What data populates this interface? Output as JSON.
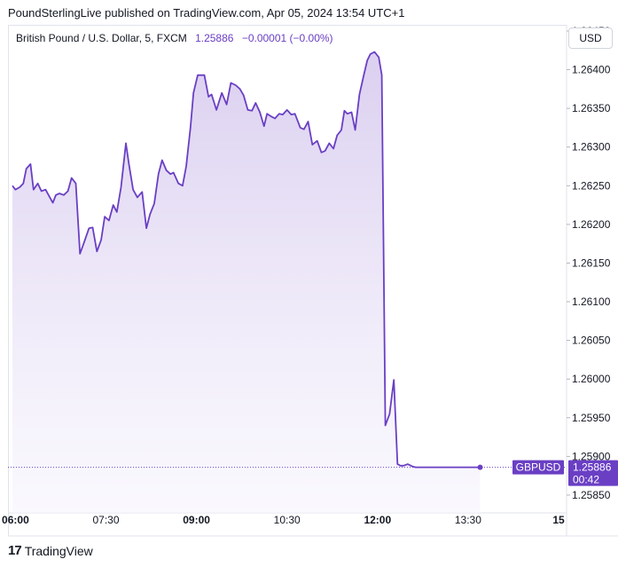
{
  "header": {
    "published_text": "PoundSterlingLive published on TradingView.com, Apr 05, 2024 13:54 UTC+1"
  },
  "legend": {
    "symbol_text": "British Pound / U.S. Dollar, 5, FXCM",
    "price": "1.25886",
    "change": "−0.00001 (−0.00%)"
  },
  "currency_button": "USD",
  "price_label": {
    "ticker": "GBPUSD",
    "price": "1.25886",
    "countdown": "00:42"
  },
  "footer": {
    "logo_glyph": "17",
    "brand": "TradingView"
  },
  "colors": {
    "line": "#6a3fc4",
    "fill_top": "#d9cdef",
    "fill_bottom": "#f7f5fd",
    "price_tag_bg": "#6a3fc4"
  },
  "chart_data": {
    "type": "area",
    "yaxis_side": "right",
    "ylim": [
      1.25827,
      1.26458
    ],
    "yticks": [
      "1.26450",
      "1.26400",
      "1.26350",
      "1.26300",
      "1.26250",
      "1.26200",
      "1.26150",
      "1.26100",
      "1.26050",
      "1.26000",
      "1.25950",
      "1.25900",
      "1.25850"
    ],
    "xlim": [
      5.95,
      15.0
    ],
    "xticks": [
      {
        "x": 6.0,
        "label": "06:00",
        "bold": true
      },
      {
        "x": 7.5,
        "label": "07:30",
        "bold": false
      },
      {
        "x": 9.0,
        "label": "09:00",
        "bold": true
      },
      {
        "x": 10.5,
        "label": "10:30",
        "bold": false
      },
      {
        "x": 12.0,
        "label": "12:00",
        "bold": true
      },
      {
        "x": 13.5,
        "label": "13:30",
        "bold": false
      },
      {
        "x": 15.0,
        "label": "15",
        "bold": true
      }
    ],
    "series": [
      {
        "x": [
          5.95,
          6.0,
          6.07,
          6.13,
          6.18,
          6.25,
          6.3,
          6.37,
          6.43,
          6.5,
          6.57,
          6.62,
          6.67,
          6.73,
          6.8,
          6.87,
          6.93,
          7.0,
          7.07,
          7.13,
          7.22,
          7.28,
          7.35,
          7.42,
          7.48,
          7.55,
          7.62,
          7.68,
          7.75,
          7.83,
          7.88,
          7.95,
          8.02,
          8.1,
          8.17,
          8.23,
          8.3,
          8.37,
          8.43,
          8.5,
          8.57,
          8.62,
          8.7,
          8.77,
          8.83,
          8.9,
          8.95,
          9.02,
          9.08,
          9.13,
          9.2,
          9.25,
          9.33,
          9.42,
          9.5,
          9.57,
          9.65,
          9.72,
          9.78,
          9.85,
          9.92,
          9.98,
          10.05,
          10.12,
          10.17,
          10.23,
          10.3,
          10.37,
          10.43,
          10.5,
          10.57,
          10.63,
          10.72,
          10.78,
          10.85,
          10.92,
          11.0,
          11.07,
          11.13,
          11.2,
          11.27,
          11.33,
          11.4,
          11.45,
          11.5,
          11.57,
          11.63,
          11.7,
          11.77,
          11.83,
          11.88,
          11.95,
          12.02,
          12.07,
          12.13,
          12.2,
          12.27,
          12.33,
          12.38,
          12.43,
          12.5,
          12.58,
          12.63,
          12.72,
          12.8,
          12.85,
          12.9,
          12.97,
          13.02,
          13.08,
          13.13,
          13.18,
          13.25,
          13.33,
          13.4,
          13.45,
          13.52,
          13.55,
          13.6,
          13.7
        ],
        "y": [
          1.2625,
          1.26245,
          1.26248,
          1.26253,
          1.26272,
          1.26278,
          1.26245,
          1.26253,
          1.26243,
          1.26245,
          1.26235,
          1.26228,
          1.26238,
          1.2624,
          1.26238,
          1.26243,
          1.2626,
          1.26253,
          1.26162,
          1.26175,
          1.26195,
          1.26196,
          1.26165,
          1.2618,
          1.2621,
          1.26205,
          1.26225,
          1.26216,
          1.26248,
          1.26305,
          1.26278,
          1.26245,
          1.26235,
          1.26242,
          1.26195,
          1.26213,
          1.26227,
          1.26265,
          1.26283,
          1.2627,
          1.26265,
          1.26267,
          1.26253,
          1.2625,
          1.26275,
          1.26325,
          1.2637,
          1.26393,
          1.26393,
          1.26393,
          1.26365,
          1.26368,
          1.26348,
          1.2637,
          1.26355,
          1.26383,
          1.2638,
          1.26375,
          1.26367,
          1.26348,
          1.26347,
          1.26357,
          1.26345,
          1.26327,
          1.26343,
          1.2634,
          1.26337,
          1.26343,
          1.26342,
          1.26348,
          1.26342,
          1.26343,
          1.26325,
          1.26323,
          1.26333,
          1.26303,
          1.26308,
          1.26293,
          1.26295,
          1.26305,
          1.26298,
          1.26315,
          1.26322,
          1.26347,
          1.26343,
          1.26345,
          1.26322,
          1.26368,
          1.26392,
          1.26412,
          1.2642,
          1.26423,
          1.26416,
          1.26393,
          1.2594,
          1.25955,
          1.25999,
          1.2589,
          1.25888,
          1.25888,
          1.2589,
          1.25887,
          1.25886,
          1.25886,
          1.25886,
          1.25886,
          1.25886,
          1.25886,
          1.25886,
          1.25886,
          1.25886,
          1.25886,
          1.25886,
          1.25886,
          1.25886,
          1.25886,
          1.25886,
          1.25886,
          1.25886,
          1.25886
        ]
      }
    ],
    "last_value": 1.25886
  }
}
